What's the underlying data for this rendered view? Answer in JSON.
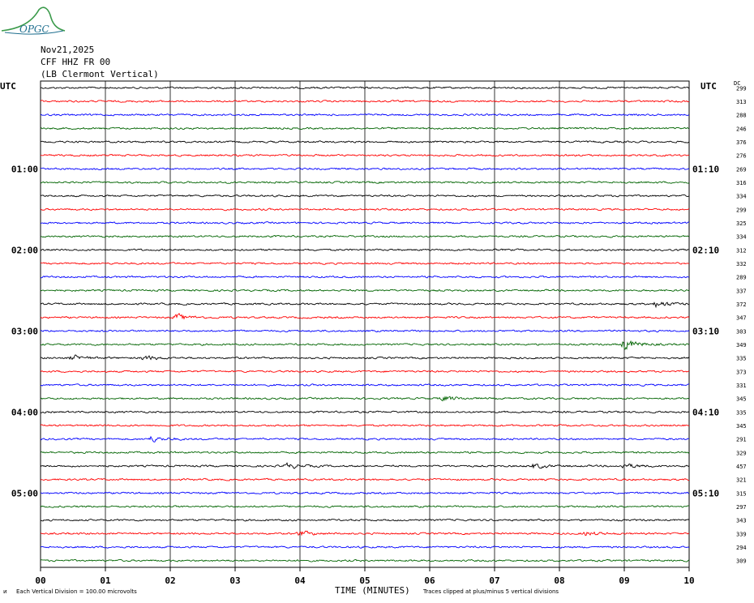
{
  "header": {
    "logo_text": "OPGC",
    "date": "Nov21,2025",
    "station": "CFF HHZ FR 00",
    "location": "(LB  Clermont Vertical)"
  },
  "left_label": "UTC",
  "right_label": "UTC",
  "dc_label": "DC",
  "footer": {
    "scale_note": "Each Vertical Division =  100.00 microvolts",
    "xlabel": "TIME (MINUTES)",
    "clip_note": "Traces clipped at plus/minus 5 vertical divisions"
  },
  "colors": {
    "trace_cycle": [
      "#000000",
      "#ff0000",
      "#0000ff",
      "#006400"
    ],
    "grid": "#000000"
  },
  "chart_data": {
    "type": "line",
    "x_range": [
      0,
      10
    ],
    "xticks": [
      "00",
      "01",
      "02",
      "03",
      "04",
      "05",
      "06",
      "07",
      "08",
      "09",
      "10"
    ],
    "row_count": 36,
    "left_time_labels": [
      {
        "row": 6,
        "label": "01:00"
      },
      {
        "row": 12,
        "label": "02:00"
      },
      {
        "row": 18,
        "label": "03:00"
      },
      {
        "row": 24,
        "label": "04:00"
      },
      {
        "row": 30,
        "label": "05:00"
      }
    ],
    "right_time_labels": [
      {
        "row": 6,
        "label": "01:10"
      },
      {
        "row": 12,
        "label": "02:10"
      },
      {
        "row": 18,
        "label": "03:10"
      },
      {
        "row": 24,
        "label": "04:10"
      },
      {
        "row": 30,
        "label": "05:10"
      }
    ],
    "dc_offsets": [
      299,
      313,
      288,
      246,
      376,
      276,
      269,
      316,
      334,
      299,
      325,
      334,
      312,
      332,
      289,
      337,
      372,
      347,
      303,
      349,
      335,
      373,
      331,
      345,
      335,
      345,
      291,
      329,
      457,
      321,
      315,
      297,
      343,
      339,
      294,
      309
    ],
    "events": [
      {
        "row": 16,
        "minute": 9.5,
        "amp": 2.2
      },
      {
        "row": 17,
        "minute": 2.1,
        "amp": 2.0
      },
      {
        "row": 19,
        "minute": 9.0,
        "amp": 3.8
      },
      {
        "row": 20,
        "minute": 0.5,
        "amp": 1.6
      },
      {
        "row": 20,
        "minute": 1.6,
        "amp": 1.5
      },
      {
        "row": 23,
        "minute": 6.2,
        "amp": 1.8
      },
      {
        "row": 26,
        "minute": 1.7,
        "amp": 1.8
      },
      {
        "row": 28,
        "minute": 3.8,
        "amp": 1.6
      },
      {
        "row": 28,
        "minute": 7.6,
        "amp": 1.5
      },
      {
        "row": 28,
        "minute": 9.0,
        "amp": 1.6
      },
      {
        "row": 33,
        "minute": 4.0,
        "amp": 1.6
      },
      {
        "row": 33,
        "minute": 8.4,
        "amp": 1.4
      }
    ]
  }
}
